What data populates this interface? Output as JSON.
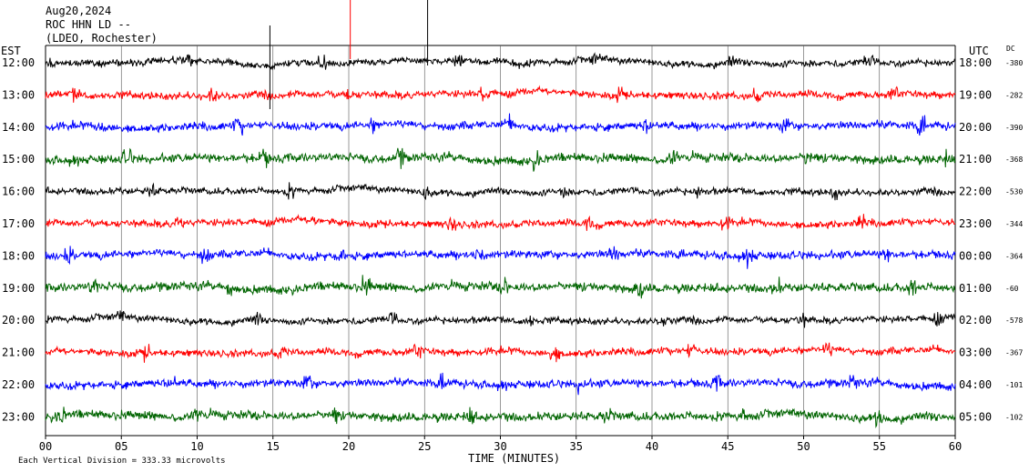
{
  "header": {
    "date": "Aug20,2024",
    "station": "ROC HHN LD --",
    "network": "(LDEO, Rochester)"
  },
  "labels": {
    "est": "EST",
    "utc": "UTC",
    "dc": "DC",
    "xlabel": "TIME (MINUTES)",
    "footnote": "Each Vertical Division =  333.33 microvolts"
  },
  "colors": {
    "black": "#000000",
    "red": "#ff0000",
    "blue": "#0000ff",
    "green": "#006400"
  },
  "chart_data": {
    "type": "line",
    "title": "Aug20,2024 ROC HHN LD -- (LDEO, Rochester)",
    "xlabel": "TIME (MINUTES)",
    "ylabel_left": "EST",
    "ylabel_right": "UTC",
    "xlim": [
      0,
      60
    ],
    "x_ticks": [
      "00",
      "05",
      "10",
      "15",
      "20",
      "25",
      "30",
      "35",
      "40",
      "45",
      "50",
      "55",
      "60"
    ],
    "vertical_division_microvolts": 333.33,
    "series": [
      {
        "est": "12:00",
        "utc": "18:00",
        "dc": "-380",
        "color": "black"
      },
      {
        "est": "13:00",
        "utc": "19:00",
        "dc": "-282",
        "color": "red"
      },
      {
        "est": "14:00",
        "utc": "20:00",
        "dc": "-390",
        "color": "blue"
      },
      {
        "est": "15:00",
        "utc": "21:00",
        "dc": "-368",
        "color": "green"
      },
      {
        "est": "16:00",
        "utc": "22:00",
        "dc": "-530",
        "color": "black"
      },
      {
        "est": "17:00",
        "utc": "23:00",
        "dc": "-344",
        "color": "red"
      },
      {
        "est": "18:00",
        "utc": "00:00",
        "dc": "-364",
        "color": "blue"
      },
      {
        "est": "19:00",
        "utc": "01:00",
        "dc": "-60",
        "color": "green"
      },
      {
        "est": "20:00",
        "utc": "02:00",
        "dc": "-578",
        "color": "black"
      },
      {
        "est": "21:00",
        "utc": "03:00",
        "dc": "-367",
        "color": "red"
      },
      {
        "est": "22:00",
        "utc": "04:00",
        "dc": "-101",
        "color": "blue"
      },
      {
        "est": "23:00",
        "utc": "05:00",
        "dc": "-102",
        "color": "green"
      }
    ]
  }
}
